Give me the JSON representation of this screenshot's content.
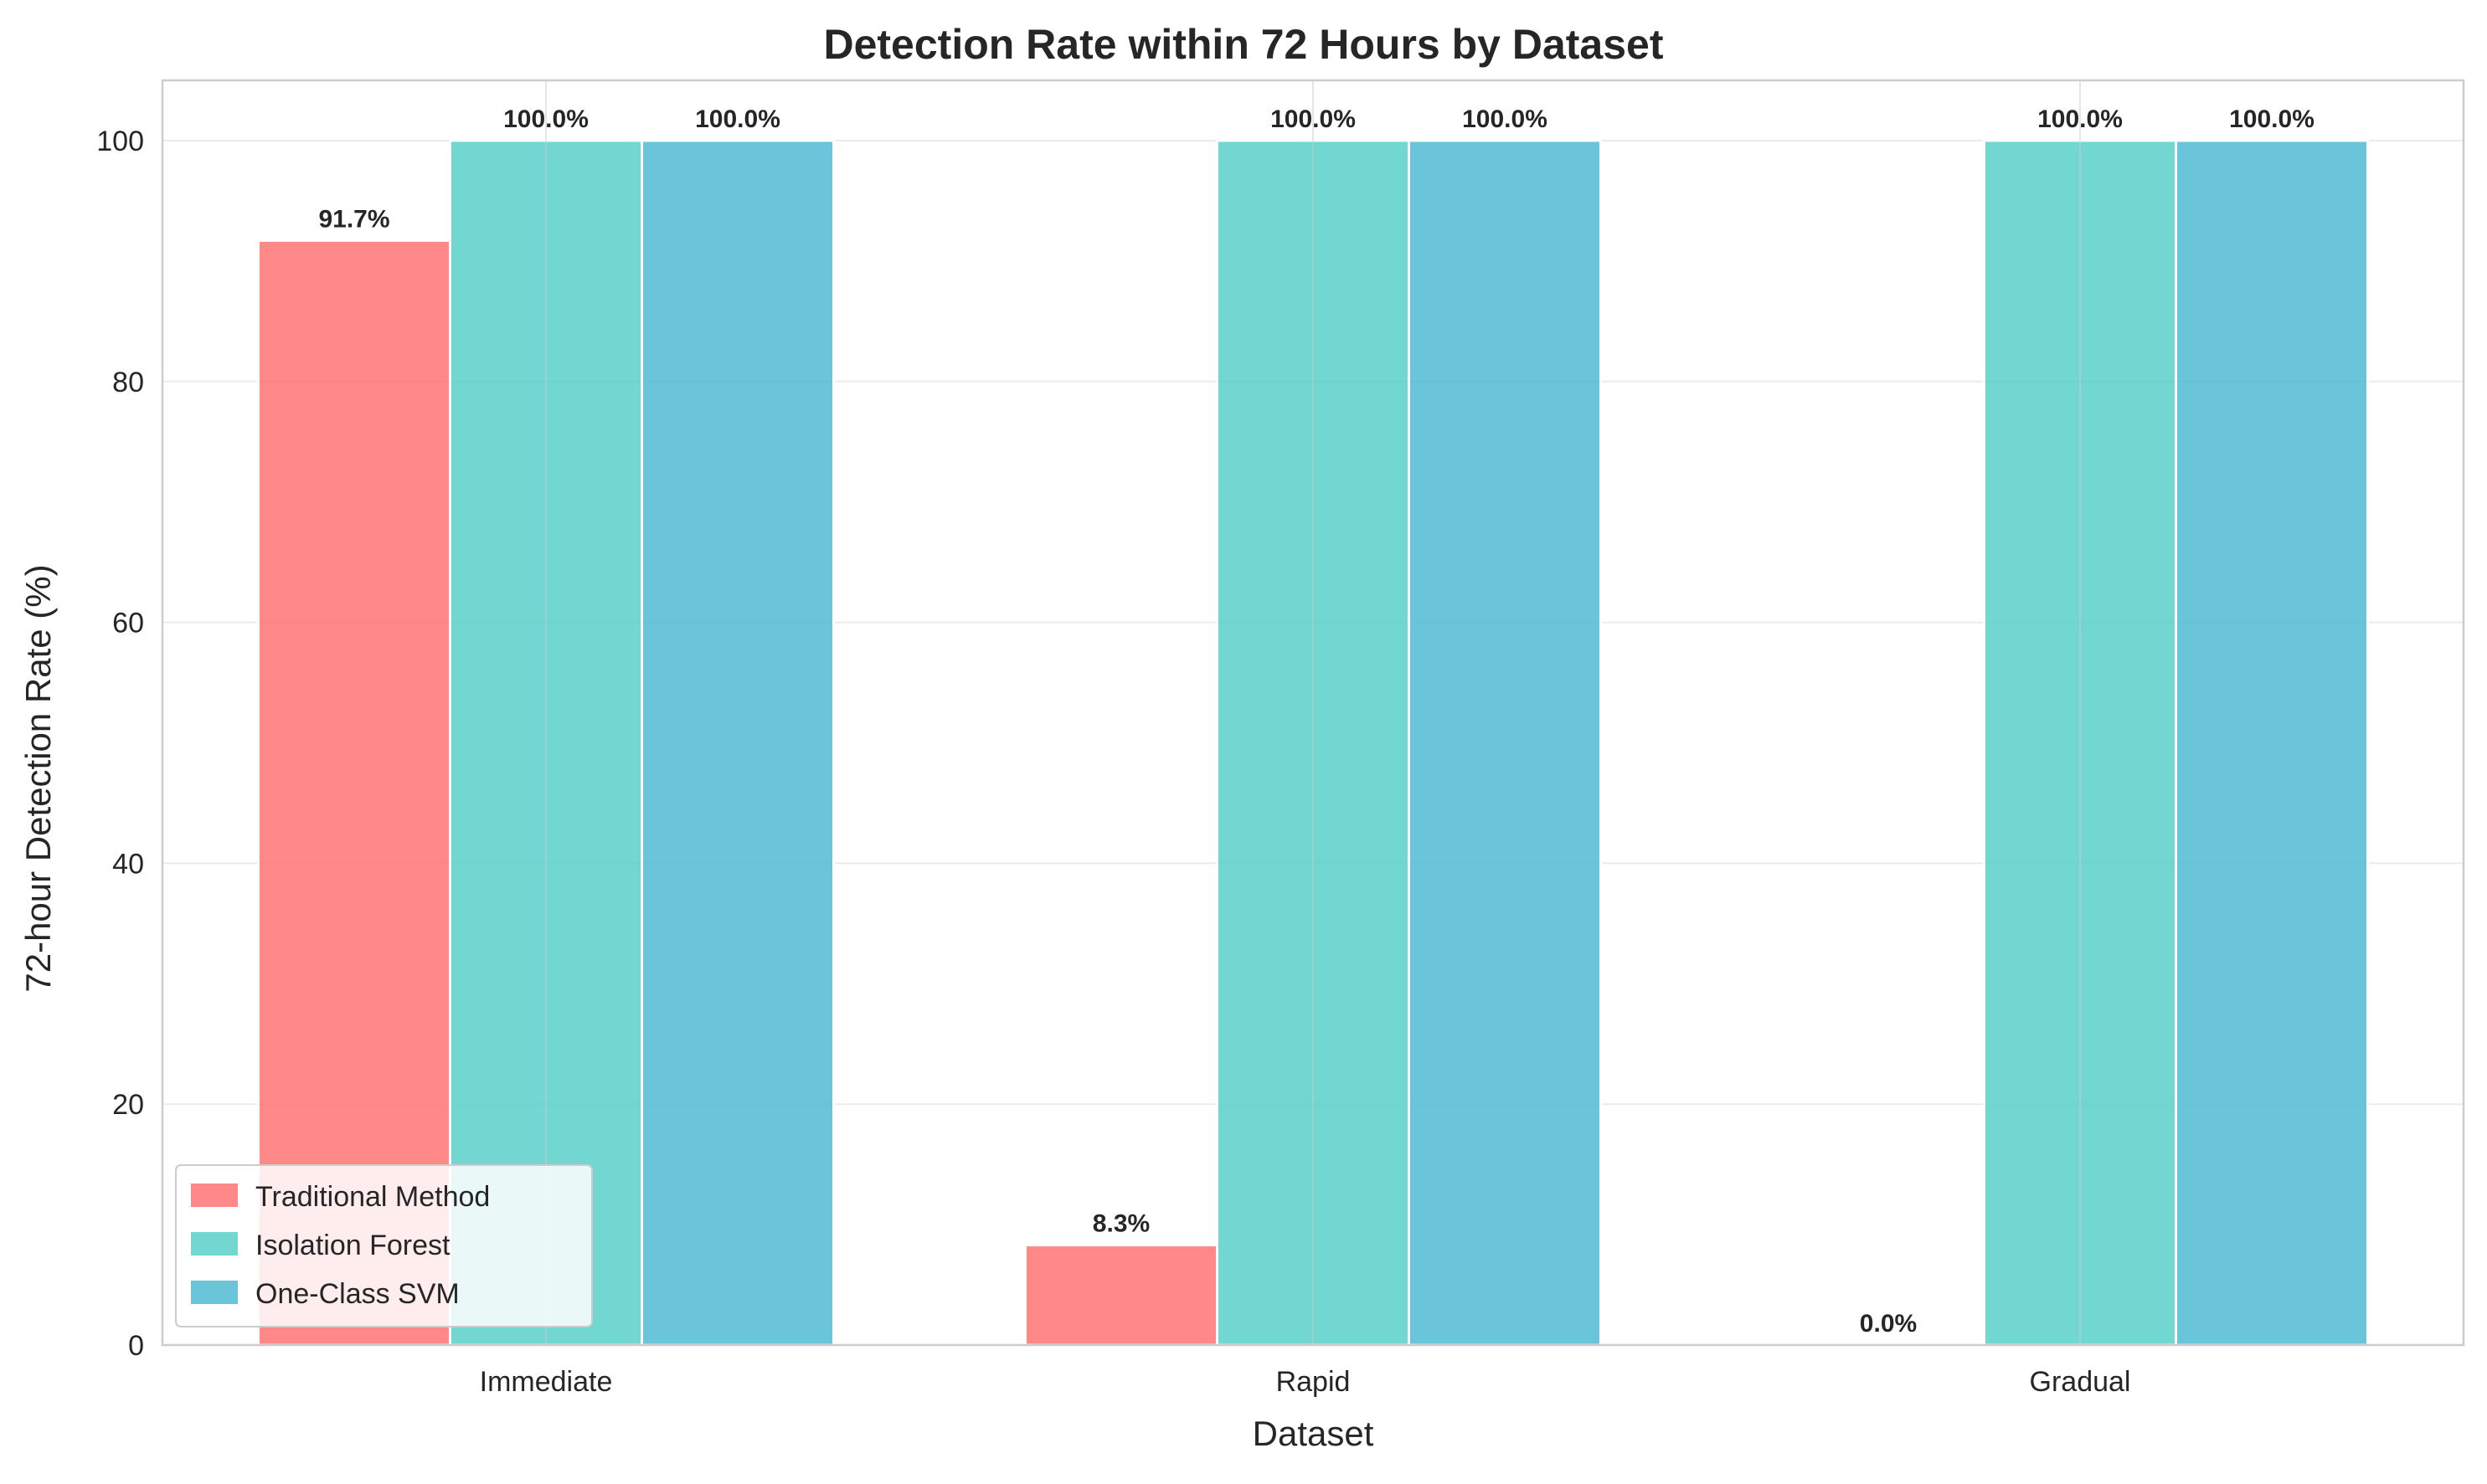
{
  "chart_data": {
    "type": "bar",
    "title": "Detection Rate within 72 Hours by Dataset",
    "xlabel": "Dataset",
    "ylabel": "72-hour Detection Rate (%)",
    "categories": [
      "Immediate",
      "Rapid",
      "Gradual"
    ],
    "series": [
      {
        "name": "Traditional Method",
        "values": [
          91.7,
          8.3,
          0.0
        ],
        "labels": [
          "91.7%",
          "8.3%",
          "0.0%"
        ],
        "color": "#FF6B6B"
      },
      {
        "name": "Isolation Forest",
        "values": [
          100.0,
          100.0,
          100.0
        ],
        "labels": [
          "100.0%",
          "100.0%",
          "100.0%"
        ],
        "color": "#4ECDC4"
      },
      {
        "name": "One-Class SVM",
        "values": [
          100.0,
          100.0,
          100.0
        ],
        "labels": [
          "100.0%",
          "100.0%",
          "100.0%"
        ],
        "color": "#45B7D1"
      }
    ],
    "ylim": [
      0,
      105
    ],
    "yticks": [
      0,
      20,
      40,
      60,
      80,
      100
    ],
    "ytick_labels": [
      "0",
      "20",
      "40",
      "60",
      "80",
      "100"
    ],
    "grid": true,
    "legend_position": "lower-left"
  }
}
